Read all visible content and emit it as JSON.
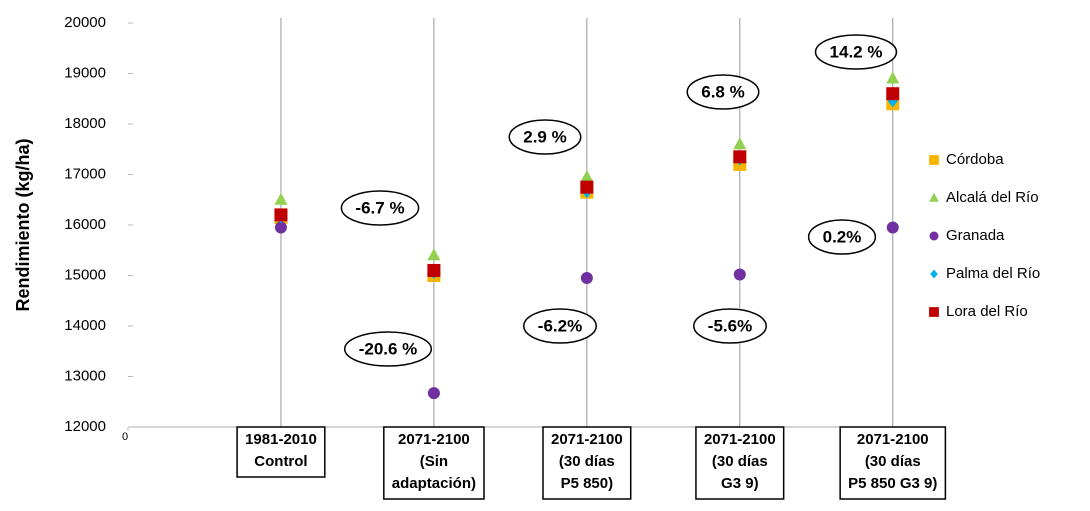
{
  "chart_data": {
    "type": "scatter",
    "y_label": "Rendimiento (kg/ha)",
    "categories": [
      [
        "1981-2010",
        "Control"
      ],
      [
        "2071-2100",
        "(Sin",
        "adaptación)"
      ],
      [
        "2071-2100",
        "(30 días",
        "P5 850)"
      ],
      [
        "2071-2100",
        "(30 días",
        "G3 9)"
      ],
      [
        "2071-2100",
        "(30 días",
        "P5 850 G3 9)"
      ]
    ],
    "xlim": [
      0,
      5.25
    ],
    "xticks": [
      0
    ],
    "ylim": [
      12000,
      20000
    ],
    "yticks": [
      12000,
      13000,
      14000,
      15000,
      16000,
      17000,
      18000,
      19000,
      20000
    ],
    "series": [
      {
        "name": "Córdoba",
        "color": "#f5b400",
        "marker": "square",
        "values": [
          16150,
          15000,
          16650,
          17200,
          18400
        ]
      },
      {
        "name": "Alcalá del Río",
        "color": "#92d050",
        "marker": "triangle",
        "values": [
          16500,
          15400,
          16950,
          17600,
          18900
        ]
      },
      {
        "name": "Granada",
        "color": "#7030a0",
        "marker": "circle",
        "values": [
          15950,
          12670,
          14950,
          15020,
          15950
        ]
      },
      {
        "name": "Palma del Río",
        "color": "#00b0f0",
        "marker": "diamond",
        "values": [
          16150,
          15050,
          16650,
          17300,
          18450
        ]
      },
      {
        "name": "Lora del Río",
        "color": "#c00000",
        "marker": "square",
        "values": [
          16200,
          15100,
          16750,
          17350,
          18600
        ]
      }
    ],
    "annotations": [
      "2.9 %",
      "-6.7 %",
      "-20.6 %",
      "-6.2%",
      "6.8 %",
      "-5.6%",
      "14.2 %",
      "0.2%"
    ]
  }
}
